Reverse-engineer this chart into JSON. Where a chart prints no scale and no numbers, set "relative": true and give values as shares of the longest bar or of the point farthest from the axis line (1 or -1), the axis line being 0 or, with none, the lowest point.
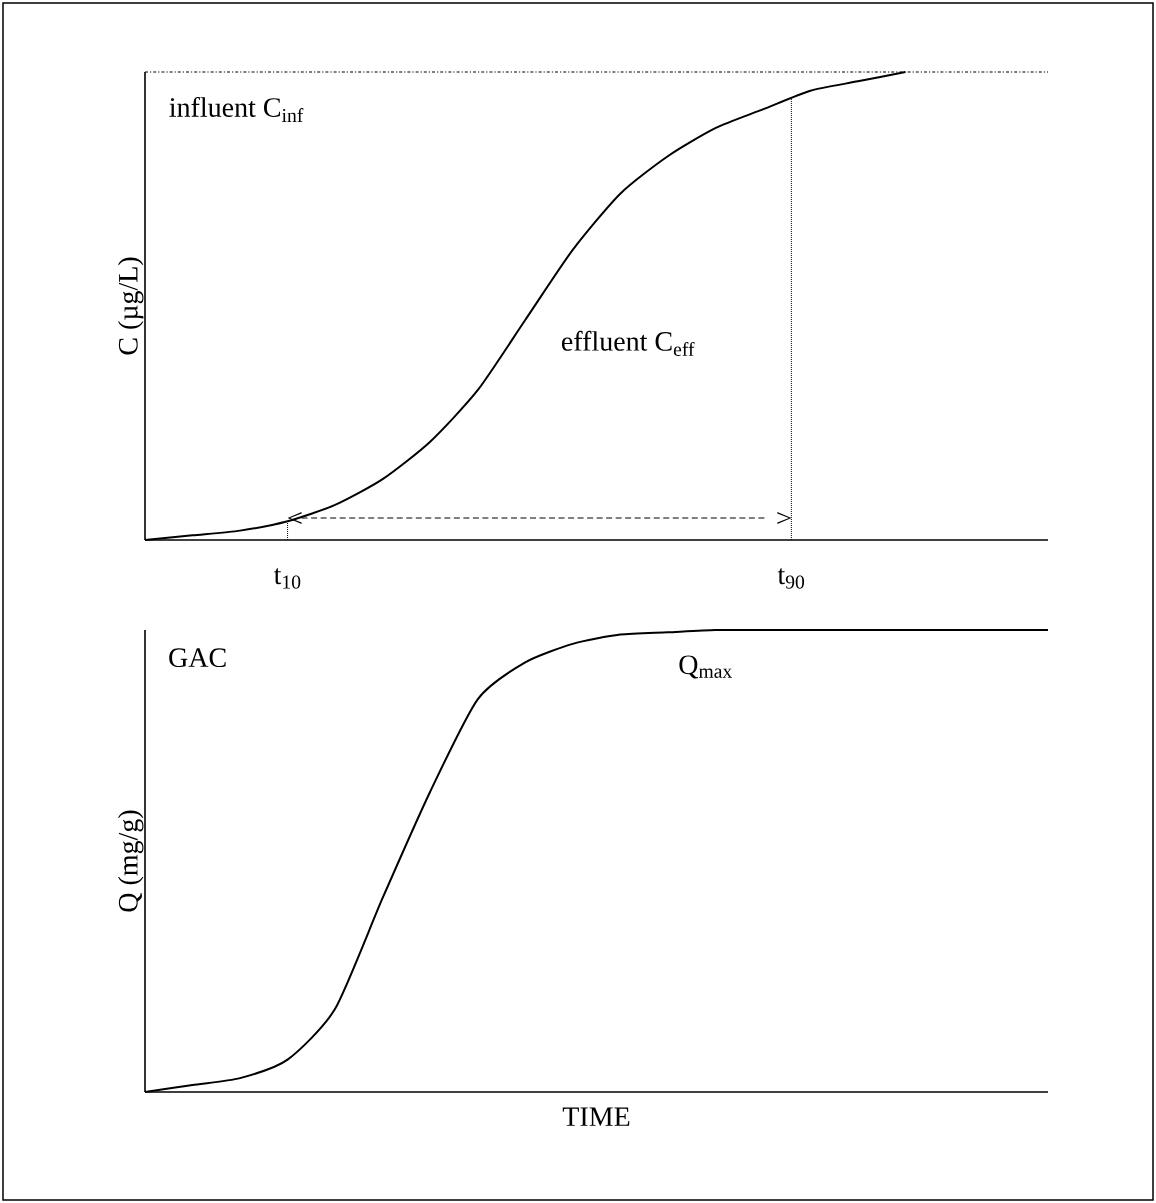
{
  "chart_data": [
    {
      "type": "line",
      "ylabel": "C (µg/L)",
      "relative": true,
      "annotations": [
        "t$_{10}$",
        "t$_{90}$"
      ],
      "categories": [
        null,
        null,
        null,
        null,
        null,
        null,
        null,
        null,
        null,
        null,
        null,
        null,
        null,
        null,
        null,
        null,
        null,
        null,
        null,
        null
      ],
      "series": [
        {
          "name": "effluent C$_{eff}$",
          "color": "#000000",
          "values": [
            0,
            0.01,
            0.02,
            0.04,
            0.075,
            0.13,
            0.21,
            0.32,
            0.47,
            0.62,
            0.74,
            0.82,
            0.88,
            0.92,
            0.96,
            0.98,
            1,
            null,
            null,
            null
          ]
        }
      ],
      "ref_lines": [
        {
          "axis": "y",
          "value": 1,
          "label": "influent C$_{inf}$",
          "line_style": "dashdot"
        }
      ]
    },
    {
      "type": "line",
      "ylabel": "Q (mg/g)",
      "xlabel": "TIME",
      "relative": true,
      "categories": [
        null,
        null,
        null,
        null,
        null,
        null,
        null,
        null,
        null,
        null,
        null,
        null,
        null,
        null,
        null,
        null,
        null,
        null,
        null,
        null
      ],
      "series": [
        {
          "color": "#000000",
          "values": [
            0,
            0.015,
            0.03,
            0.07,
            0.18,
            0.42,
            0.65,
            0.85,
            0.93,
            0.97,
            0.99,
            0.995,
            1,
            1,
            1,
            1,
            1,
            1,
            1,
            1
          ]
        }
      ],
      "annotations": [
        "GAC",
        "Q$_{max}$"
      ]
    }
  ]
}
